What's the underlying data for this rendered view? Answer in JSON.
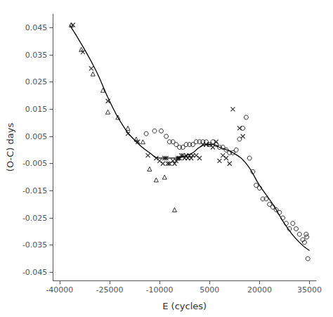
{
  "chart_data": {
    "type": "scatter",
    "xlabel": "E (cycles)",
    "ylabel": "(O-C) days",
    "xlim": [
      -42000,
      37000
    ],
    "ylim": [
      -0.048,
      0.05
    ],
    "xticks": [
      -40000,
      -25000,
      -10000,
      5000,
      20000,
      35000
    ],
    "yticks": [
      -0.045,
      -0.035,
      -0.025,
      -0.015,
      -0.005,
      0.005,
      0.015,
      0.025,
      0.035,
      0.045
    ],
    "grid": false,
    "series": [
      {
        "type": "line",
        "line_style": "solid",
        "color": "#000000",
        "x": [
          -37000,
          -33000,
          -29000,
          -25000,
          -21000,
          -17000,
          -13000,
          -10000,
          -8000,
          -5000,
          -2000,
          0,
          2000,
          4000,
          6000,
          8000,
          12000,
          16000,
          20000,
          24000,
          28000,
          32000,
          35000
        ],
        "values": [
          0.046,
          0.038,
          0.029,
          0.018,
          0.009,
          0.003,
          -0.001,
          -0.003,
          -0.003,
          -0.003,
          -0.002,
          -0.001,
          0.001,
          0.002,
          0.002,
          0.001,
          -0.001,
          -0.005,
          -0.013,
          -0.02,
          -0.028,
          -0.034,
          -0.037
        ]
      },
      {
        "type": "scatter",
        "marker": "triangle-open",
        "color": "#000000",
        "x": [
          -36500,
          -33500,
          -30000,
          -27000,
          -25500,
          -22500,
          -19500,
          -17000,
          -15000,
          -13000,
          -11000,
          -8500,
          -5500,
          -4500
        ],
        "values": [
          0.046,
          0.037,
          0.028,
          0.022,
          0.014,
          0.012,
          0.008,
          0.004,
          0.003,
          -0.007,
          -0.011,
          -0.01,
          -0.022,
          -0.003
        ]
      },
      {
        "type": "scatter",
        "marker": "x",
        "color": "#000000",
        "x": [
          -36000,
          -33000,
          -30500,
          -25500,
          -19500,
          -16500,
          -13500,
          -11000,
          -10000,
          -9000,
          -8500,
          -8000,
          -7500,
          -7000,
          -6000,
          -5500,
          -5000,
          -4500,
          -4000,
          -3500,
          -3000,
          -2500,
          -2000,
          -1500,
          -1000,
          -500,
          0,
          1000,
          2000,
          3000,
          4000,
          5000,
          6000,
          7000,
          8000,
          9000,
          10000,
          11000,
          12000,
          14000,
          15000
        ],
        "values": [
          0.046,
          0.036,
          0.03,
          0.018,
          0.006,
          0.003,
          -0.002,
          -0.003,
          -0.004,
          -0.005,
          -0.003,
          -0.003,
          -0.005,
          -0.005,
          -0.004,
          -0.005,
          -0.004,
          -0.003,
          -0.003,
          -0.002,
          -0.002,
          -0.003,
          -0.002,
          -0.003,
          -0.002,
          -0.003,
          -0.002,
          -0.002,
          -0.003,
          0.002,
          0.002,
          0.002,
          0.001,
          0.003,
          -0.004,
          -0.002,
          -0.003,
          -0.005,
          0.015,
          0.008,
          0.005
        ]
      },
      {
        "type": "scatter",
        "marker": "circle-open",
        "color": "#000000",
        "x": [
          -14000,
          -11500,
          -9500,
          -8000,
          -7000,
          -6000,
          -5000,
          -4000,
          -3000,
          -2000,
          -1000,
          0,
          1000,
          2000,
          3000,
          4000,
          5000,
          6000,
          7000,
          8000,
          9000,
          10000,
          11000,
          12000,
          13000,
          14000,
          15000,
          16000,
          17000,
          18000,
          19000,
          20000,
          21000,
          22000,
          23000,
          24000,
          25000,
          26000,
          27000,
          28000,
          29000,
          30000,
          31000,
          32000,
          33000,
          33500,
          34000,
          34200,
          34500
        ],
        "values": [
          0.006,
          0.007,
          0.007,
          0.005,
          0.003,
          0.003,
          0.002,
          0.001,
          0.001,
          0.002,
          0.002,
          0.002,
          0.003,
          0.003,
          0.003,
          0.003,
          0.002,
          0.003,
          0.002,
          0.001,
          0.001,
          0.0,
          -0.001,
          -0.001,
          0.0,
          0.004,
          0.008,
          0.012,
          -0.003,
          -0.008,
          -0.013,
          -0.014,
          -0.018,
          -0.018,
          -0.02,
          -0.021,
          -0.022,
          -0.023,
          -0.025,
          -0.027,
          -0.029,
          -0.027,
          -0.029,
          -0.031,
          -0.033,
          -0.034,
          -0.031,
          -0.032,
          -0.04
        ]
      }
    ]
  }
}
